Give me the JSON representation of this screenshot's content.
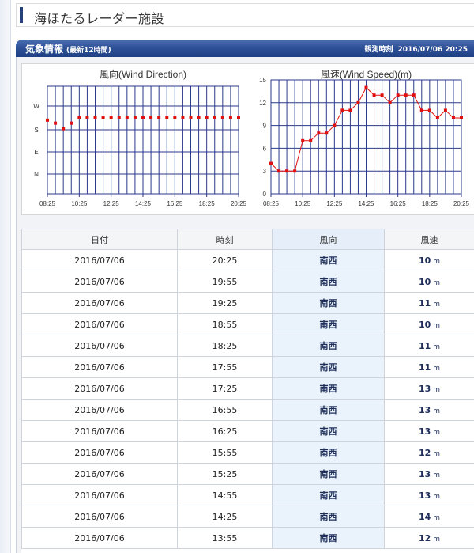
{
  "page_title": "海ほたるレーダー施設",
  "weather": {
    "title": "気象情報",
    "subtitle": "(最新12時間)",
    "observed_label": "観測時刻",
    "observed_time": "2016/07/06 20:25"
  },
  "colors": {
    "header": "#27407a",
    "grid": "#2a3a8c",
    "series": "#e01010",
    "direction_col": "#eaf3fc"
  },
  "chart_data": [
    {
      "type": "scatter",
      "title": "風向(Wind Direction)",
      "x": [
        "08:25",
        "08:55",
        "09:25",
        "09:55",
        "10:25",
        "10:55",
        "11:25",
        "11:55",
        "12:25",
        "12:55",
        "13:25",
        "13:55",
        "14:25",
        "14:55",
        "15:25",
        "15:55",
        "16:25",
        "16:55",
        "17:25",
        "17:55",
        "18:25",
        "18:55",
        "19:25",
        "19:55",
        "20:25"
      ],
      "x_ticks": [
        "08:25",
        "10:25",
        "12:25",
        "14:25",
        "16:25",
        "18:25",
        "20:25"
      ],
      "y_ticks": [
        "W",
        "S",
        "E",
        "N"
      ],
      "values_deg": [
        214,
        202,
        180,
        202,
        225,
        225,
        225,
        225,
        225,
        225,
        225,
        225,
        225,
        225,
        225,
        225,
        225,
        225,
        225,
        225,
        225,
        225,
        225,
        225,
        225
      ],
      "grid": true
    },
    {
      "type": "line",
      "title": "風速(Wind Speed)(m)",
      "x": [
        "08:25",
        "08:55",
        "09:25",
        "09:55",
        "10:25",
        "10:55",
        "11:25",
        "11:55",
        "12:25",
        "12:55",
        "13:25",
        "13:55",
        "14:25",
        "14:55",
        "15:25",
        "15:55",
        "16:25",
        "16:55",
        "17:25",
        "17:55",
        "18:25",
        "18:55",
        "19:25",
        "19:55",
        "20:25"
      ],
      "x_ticks": [
        "08:25",
        "10:25",
        "12:25",
        "14:25",
        "16:25",
        "18:25",
        "20:25"
      ],
      "y_ticks": [
        0,
        3,
        6,
        9,
        12,
        15
      ],
      "ylim": [
        0,
        15
      ],
      "values": [
        4,
        3,
        3,
        3,
        7,
        7,
        8,
        8,
        9,
        11,
        11,
        12,
        14,
        13,
        13,
        12,
        13,
        13,
        13,
        11,
        11,
        10,
        11,
        10,
        10
      ],
      "grid": true
    }
  ],
  "table": {
    "headers": [
      "日付",
      "時刻",
      "風向",
      "風速"
    ],
    "unit": "m",
    "rows": [
      {
        "date": "2016/07/06",
        "time": "20:25",
        "dir": "南西",
        "speed": "10"
      },
      {
        "date": "2016/07/06",
        "time": "19:55",
        "dir": "南西",
        "speed": "10"
      },
      {
        "date": "2016/07/06",
        "time": "19:25",
        "dir": "南西",
        "speed": "11"
      },
      {
        "date": "2016/07/06",
        "time": "18:55",
        "dir": "南西",
        "speed": "10"
      },
      {
        "date": "2016/07/06",
        "time": "18:25",
        "dir": "南西",
        "speed": "11"
      },
      {
        "date": "2016/07/06",
        "time": "17:55",
        "dir": "南西",
        "speed": "11"
      },
      {
        "date": "2016/07/06",
        "time": "17:25",
        "dir": "南西",
        "speed": "13"
      },
      {
        "date": "2016/07/06",
        "time": "16:55",
        "dir": "南西",
        "speed": "13"
      },
      {
        "date": "2016/07/06",
        "time": "16:25",
        "dir": "南西",
        "speed": "13"
      },
      {
        "date": "2016/07/06",
        "time": "15:55",
        "dir": "南西",
        "speed": "12"
      },
      {
        "date": "2016/07/06",
        "time": "15:25",
        "dir": "南西",
        "speed": "13"
      },
      {
        "date": "2016/07/06",
        "time": "14:55",
        "dir": "南西",
        "speed": "13"
      },
      {
        "date": "2016/07/06",
        "time": "14:25",
        "dir": "南西",
        "speed": "14"
      },
      {
        "date": "2016/07/06",
        "time": "13:55",
        "dir": "南西",
        "speed": "12"
      }
    ]
  }
}
